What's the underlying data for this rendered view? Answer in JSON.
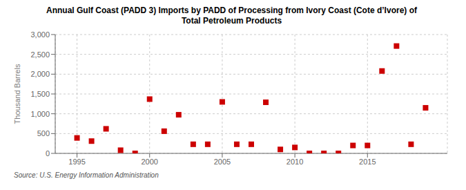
{
  "chart_data": {
    "type": "scatter",
    "title": "Annual Gulf Coast (PADD 3) Imports by PADD of Processing from Ivory Coast (Cote d’Ivore) of\nTotal Petroleum Products",
    "ylabel": "Thousand Barrels",
    "annotations": [
      "Source: U.S. Energy Information Administration"
    ],
    "x": [
      1995,
      1996,
      1997,
      1998,
      1999,
      2000,
      2001,
      2002,
      2003,
      2004,
      2005,
      2006,
      2007,
      2008,
      2009,
      2010,
      2011,
      2012,
      2013,
      2014,
      2015,
      2016,
      2017,
      2018,
      2019
    ],
    "values": [
      390,
      310,
      620,
      80,
      0,
      1370,
      560,
      975,
      230,
      230,
      1300,
      230,
      230,
      1290,
      100,
      150,
      0,
      0,
      0,
      200,
      200,
      2080,
      2710,
      230,
      1150
    ],
    "color": "#cc0000",
    "marker": "square",
    "xlim": [
      1993.5,
      2020.5
    ],
    "xticks": [
      1995,
      2000,
      2005,
      2010,
      2015
    ],
    "ylim": [
      0,
      3000
    ],
    "yticks": [
      0,
      500,
      {
        "value": 1000,
        "label": "1,000"
      },
      {
        "value": 1500,
        "label": "1,500"
      },
      {
        "value": 2000,
        "label": "2,000"
      },
      {
        "value": 2500,
        "label": "2,500"
      },
      {
        "value": 3000,
        "label": "3,000"
      }
    ],
    "grid": true
  }
}
